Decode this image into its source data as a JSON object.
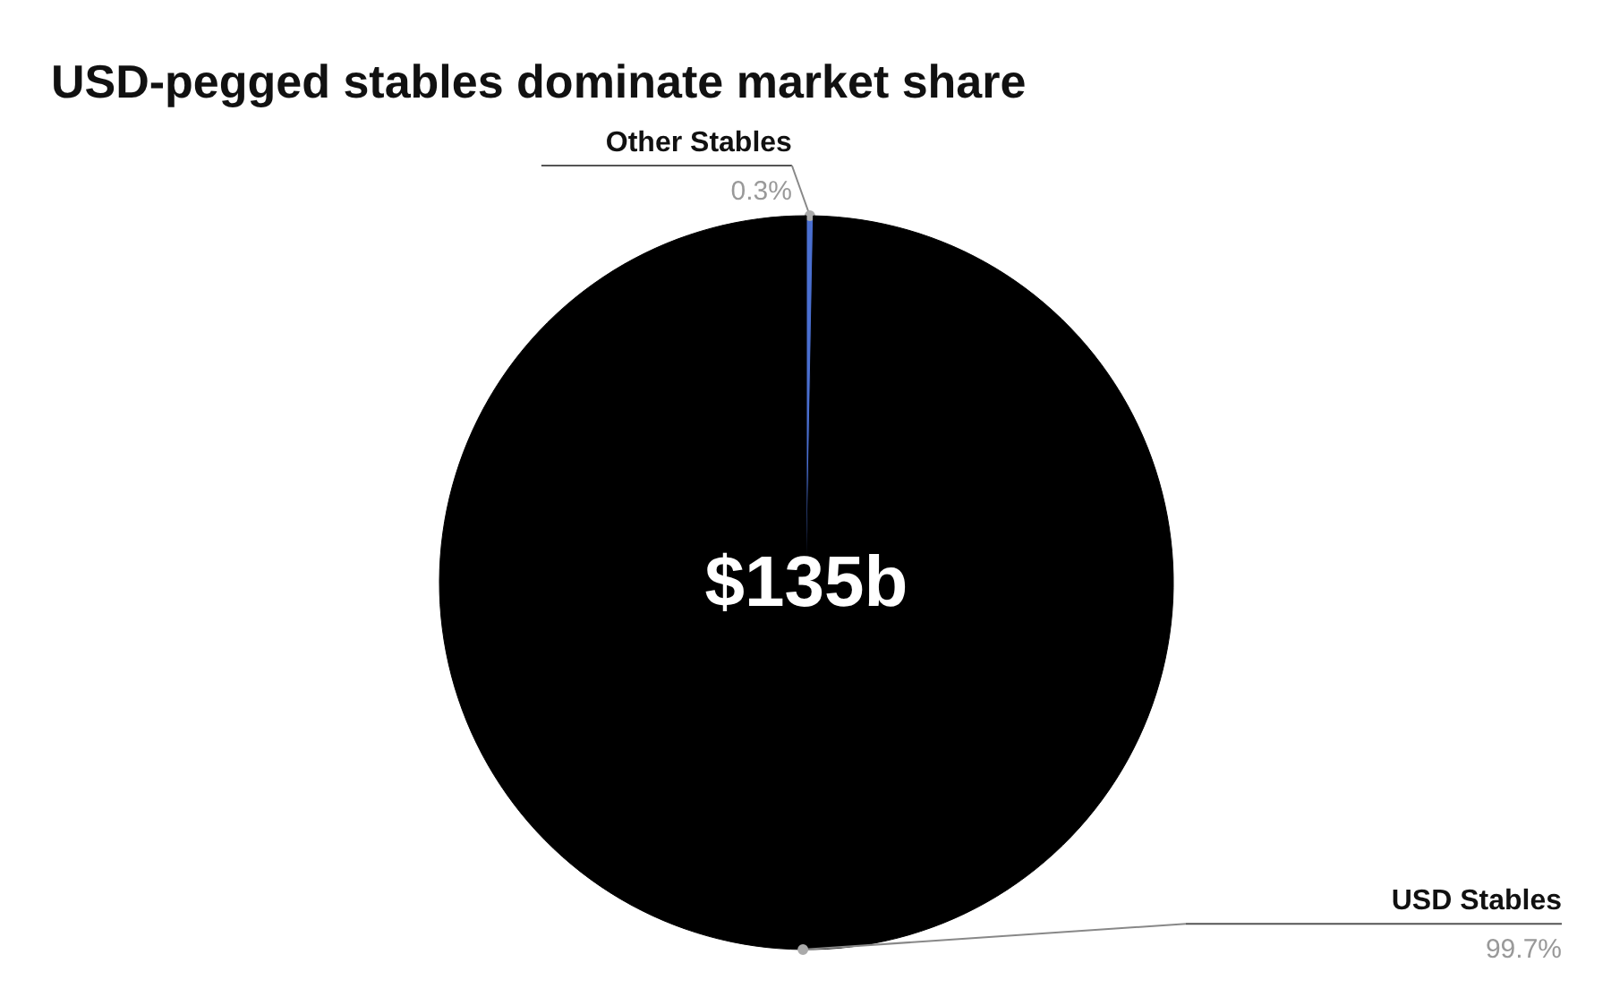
{
  "chart_data": {
    "type": "pie",
    "title": "USD-pegged stables dominate market share",
    "categories": [
      "Other Stables",
      "USD Stables"
    ],
    "values": [
      0.3,
      99.7
    ],
    "colors": [
      "#4a6fd0",
      "#000000"
    ],
    "value_labels": [
      "0.3%",
      "99.7%"
    ],
    "annotations": [
      "$135b"
    ]
  }
}
